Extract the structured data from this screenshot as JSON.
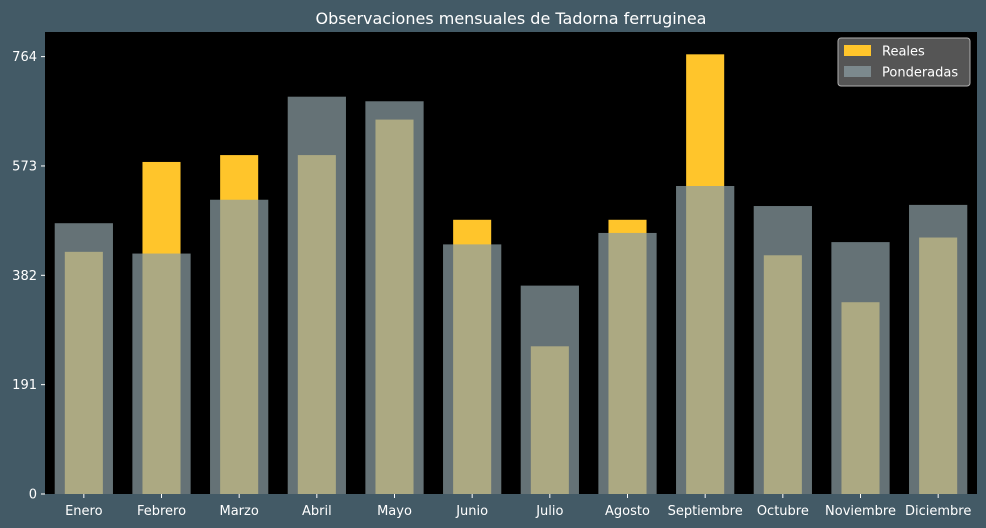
{
  "chart_data": {
    "type": "bar",
    "title": "Observaciones mensuales de Tadorna ferruginea",
    "xlabel": "",
    "ylabel": "",
    "categories": [
      "Enero",
      "Febrero",
      "Marzo",
      "Abril",
      "Mayo",
      "Junio",
      "Julio",
      "Agosto",
      "Septiembre",
      "Octubre",
      "Noviembre",
      "Diciembre"
    ],
    "series": [
      {
        "name": "Reales",
        "color": "#ffc52b",
        "values": [
          423,
          580,
          592,
          592,
          654,
          479,
          258,
          479,
          768,
          417,
          335,
          448
        ]
      },
      {
        "name": "Ponderadas",
        "color": "#8c9ea4",
        "opacity": 0.72,
        "values": [
          473,
          420,
          514,
          694,
          686,
          436,
          364,
          456,
          538,
          503,
          440,
          505
        ]
      }
    ],
    "yticks": [
      0,
      191,
      382,
      573,
      764
    ],
    "ylim": [
      0,
      807
    ],
    "overlay": true,
    "grid": false,
    "legend_position": "top-right",
    "plot_background": "#000000",
    "figure_background": "#435a66"
  }
}
